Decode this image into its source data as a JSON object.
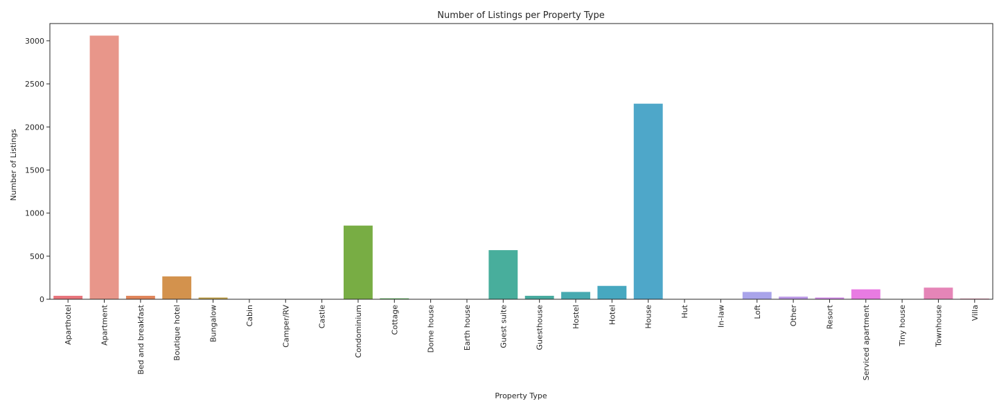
{
  "chart_data": {
    "type": "bar",
    "title": "Number of Listings per Property Type",
    "xlabel": "Property Type",
    "ylabel": "Number of Listings",
    "ylim": [
      0,
      3200
    ],
    "yticks": [
      0,
      500,
      1000,
      1500,
      2000,
      2500,
      3000
    ],
    "grid": false,
    "categories": [
      "Aparthotel",
      "Apartment",
      "Bed and breakfast",
      "Boutique hotel",
      "Bungalow",
      "Cabin",
      "Camper/RV",
      "Castle",
      "Condominium",
      "Cottage",
      "Dome house",
      "Earth house",
      "Guest suite",
      "Guesthouse",
      "Hostel",
      "Hotel",
      "House",
      "Hut",
      "In-law",
      "Loft",
      "Other",
      "Resort",
      "Serviced apartment",
      "Tiny house",
      "Townhouse",
      "Villa"
    ],
    "values": [
      40,
      3060,
      40,
      265,
      20,
      1,
      1,
      1,
      855,
      10,
      1,
      1,
      570,
      40,
      85,
      155,
      2270,
      1,
      1,
      85,
      30,
      20,
      115,
      1,
      135,
      8
    ],
    "colors": [
      "#e8747b",
      "#e8968a",
      "#e0855a",
      "#d3924d",
      "#bfa04a",
      "#b4a548",
      "#9fab49",
      "#8aaf4c",
      "#78ad44",
      "#4fb04c",
      "#4ab278",
      "#48b08f",
      "#48ae9c",
      "#47ab9f",
      "#47aab0",
      "#47a8c0",
      "#4ea7c9",
      "#7ea6d6",
      "#a0a6e3",
      "#a9a4ea",
      "#ba97e6",
      "#d08ae6",
      "#e87be2",
      "#e479c7",
      "#e585b7",
      "#e686a3"
    ]
  }
}
